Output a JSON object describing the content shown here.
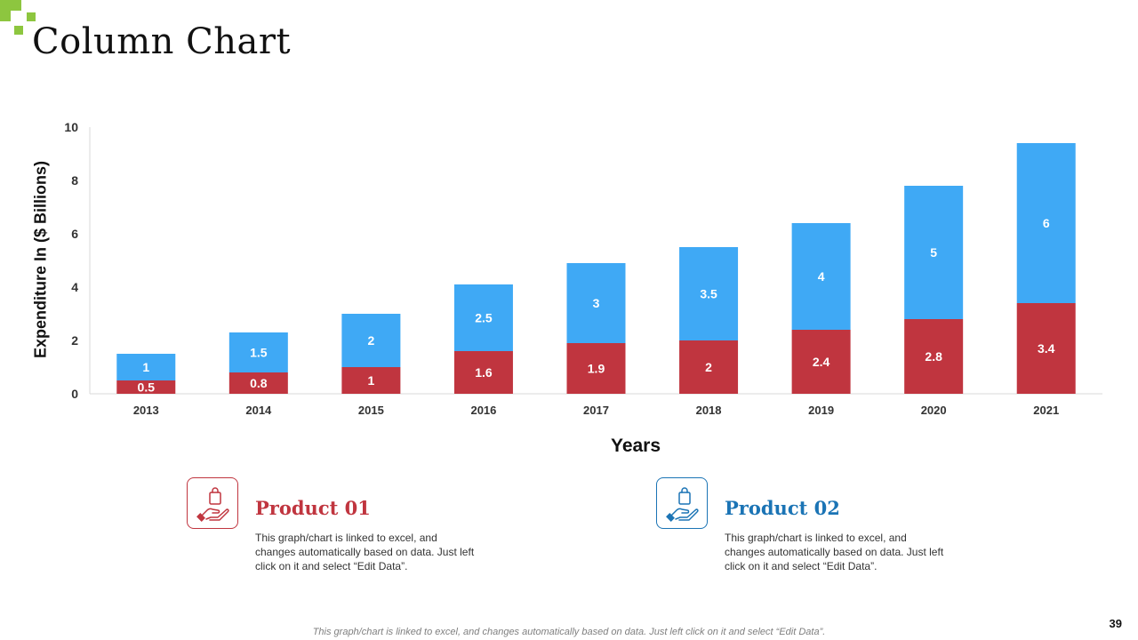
{
  "slide": {
    "title": "Column Chart",
    "page_number": "39",
    "footer": "This graph/chart is linked to excel, and changes automatically based on data. Just left click on it and select “Edit Data”."
  },
  "colors": {
    "product01": "#c0353f",
    "product02": "#3fa9f5",
    "accent": "#8dc63f",
    "product02_title": "#1b74b5"
  },
  "chart_data": {
    "type": "bar",
    "stacked": true,
    "title": "",
    "xlabel": "Years",
    "ylabel": "Expenditure In ($ Billions)",
    "ylim": [
      0,
      10
    ],
    "yticks": [
      0,
      2,
      4,
      6,
      8,
      10
    ],
    "grid": false,
    "categories": [
      "2013",
      "2014",
      "2015",
      "2016",
      "2017",
      "2018",
      "2019",
      "2020",
      "2021"
    ],
    "series": [
      {
        "name": "Product 01",
        "color": "#c0353f",
        "values": [
          0.5,
          0.8,
          1,
          1.6,
          1.9,
          2,
          2.4,
          2.8,
          3.4
        ]
      },
      {
        "name": "Product 02",
        "color": "#3fa9f5",
        "values": [
          1,
          1.5,
          2,
          2.5,
          3,
          3.5,
          4,
          5,
          6
        ]
      }
    ]
  },
  "products": [
    {
      "title": "Product 01",
      "icon": "hand-holding-bag-icon",
      "description": "This graph/chart is linked to excel, and changes automatically based on data. Just left click on it and select “Edit Data”."
    },
    {
      "title": "Product 02",
      "icon": "hand-holding-bag-icon",
      "description": "This graph/chart is linked to excel, and changes automatically based on data. Just left click on it and select “Edit Data”."
    }
  ]
}
